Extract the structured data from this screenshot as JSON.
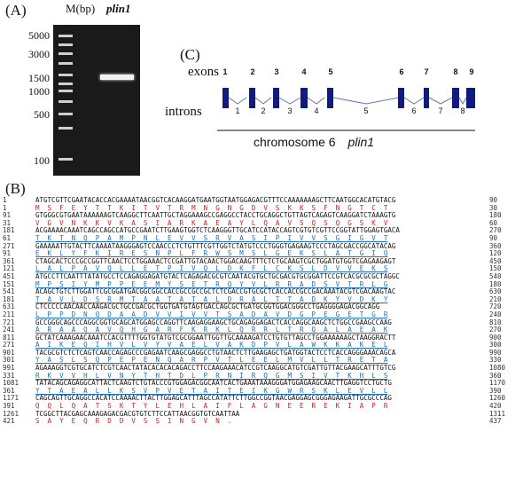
{
  "panels": {
    "a": "(A)",
    "b": "(B)",
    "c": "(C)"
  },
  "gel": {
    "marker_header": "M(bp)",
    "sample_header": "plin1",
    "ladder": [
      "5000",
      "3000",
      "1500",
      "1000",
      "500",
      "100"
    ]
  },
  "gene_diagram": {
    "exons_label": "exons",
    "introns_label": "introns",
    "exon_numbers": [
      "1",
      "2",
      "3",
      "4",
      "5",
      "6",
      "7",
      "8",
      "9"
    ],
    "intron_numbers": [
      "1",
      "2",
      "3",
      "4",
      "5",
      "6",
      "7",
      "8"
    ],
    "chromosome": "chromosome 6",
    "gene": "plin1"
  },
  "sequence": [
    {
      "n": "1",
      "s": "ATGTCGTTCGAATACACCACGAAAATAACGGTCACAAGGATGAATGGTAATGGAGACGTTTCCAAAAAAAGCTTCAATGGCACATGTACG",
      "r": "90",
      "t": "nt"
    },
    {
      "n": "1",
      "s": "M  S  F  E  Y  T  T  K  I  T  V  T  R  M  N  G  N  G  D  V  S  K  K  S  F  N  G  T  C  T",
      "r": "30",
      "t": "red"
    },
    {
      "n": "91",
      "s": "GTGGGCGTGAATAAAAAAGTCAAGGCTTCAATTGCTAGGAAAGCCGAGGCCTACCTGCAGGCTGTTAGTCAGAGTCAAGGATCTAAAGTG",
      "r": "180",
      "t": "nt"
    },
    {
      "n": "31",
      "s": "V  G  V  N  K  K  V  K  A  S  I  A  R  K  A  E  A  Y  L  Q  A  V  S  Q  S  Q  G  S  K  V",
      "r": "60",
      "t": "red"
    },
    {
      "n": "181",
      "s": "ACGAAAACAAATCAGCCAGCCATGCCGAATCTTGAAGTGGTCTCAAGGGTTGCATCCATACCAGTCGTGTCGTTCCGGTATTGGAGTGACA",
      "r": "270",
      "t": "nt"
    },
    {
      "n": "61",
      "s": "T  K  T  N  Q  P  A  M  P  N  L  E  V  V  S  R  V  A  S  I  P  I  V  V  S  G  I  G  V  T",
      "r": "90",
      "t": "mix"
    },
    {
      "n": "271",
      "s": "GAAAAATTGTACTTCAAAATAAGGGAGTCCAACCCTCTGTTTCGTTGGTCTATGTCCCTGGGTGAGAAGTCCCTAGCGACCGGCATACAG",
      "r": "360",
      "t": "nt"
    },
    {
      "n": "91",
      "s": "E  K  L  Y  F  K  I  R  E  S  N  P  L  F  R  W  S  M  S  L  G  E  K  S  L  A  T  G  I  Q",
      "r": "120",
      "t": "blue"
    },
    {
      "n": "361",
      "s": "CTAGCACTCCCGCCGGTTCAACTCCTGGAAACTCCGATTGTACAACTGGACAAGTTTCTCTGCAAGTCGCTGGATGTGGTCGAGAAGAGT",
      "r": "450",
      "t": "nt"
    },
    {
      "n": "121",
      "s": "L  A  L  P  A  V  Q  L  L  E  T  P  I  V  Q  L  D  K  F  L  C  K  S  L  D  V  V  E  K  S",
      "r": "150",
      "t": "blue"
    },
    {
      "n": "451",
      "s": "ATGCCTTCAATTTATATGCCTCCAGAGGAGATGTACTCAGAGACGCGTCAATACGTGCTGCGACGTGCGGATTCCGTCACGCGCGCTAGGC",
      "r": "540",
      "t": "nt"
    },
    {
      "n": "151",
      "s": "M  P  S  I  Y  M  P  P  E  E  M  Y  S  E  T  R  Q  Y  V  L  R  R  A  D  S  V  T  R  L  G",
      "r": "180",
      "t": "blue"
    },
    {
      "n": "541",
      "s": "ACAGCTGTCTTGGATTCGCGGATGACGGCGGCCACCGCCGCCGCTCTCGACCGTGCGCTCACCACCGCCGACAAATACGTCGACAAGTAC",
      "r": "630",
      "t": "nt"
    },
    {
      "n": "181",
      "s": "T  A  V  L  D  S  R  M  T  A  A  T  A  T  A  L  D  R  A  L  T  T  A  D  K  Y  V  D  K  Y",
      "r": "210",
      "t": "blue"
    },
    {
      "n": "631",
      "s": "CTCCCCCAACAACCAAGACGCTGCCGACGCTGGTGATGTAGTGACCAGCGCTGATGCGGTGGACGGGCCTGAGGGGAGACGGCAGG",
      "r": "720",
      "t": "nt"
    },
    {
      "n": "211",
      "s": "L  P  P  D  N  Q  D  A  A  D  V  V  I  V  V  T  S  A  D  A  V  D  G  P  E  G  E  T  G  R",
      "r": "240",
      "t": "blue"
    },
    {
      "n": "721",
      "s": "GCCGGGCAGCCCAGGCGGTGCAGCATGGAGCCAGGTTCAAGAGGAAGCTGCAGAGGAGACTCACCAGGCAAGCTCTGGCCGAAGCCAAG",
      "r": "810",
      "t": "nt"
    },
    {
      "n": "241",
      "s": "A  R  A  A  Q  A  V  Q  H  G  A  R  F  K  R  K  L  Q  R  R  L  T  R  Q  A  L  A  E  A  K",
      "r": "270",
      "t": "blue"
    },
    {
      "n": "811",
      "s": "GCTATCAAAGAACAAATCCACGTTTTGGTGTATGTCGCGGAATTGGTTGCAAAAGATCCTGTGTTAGCCTGGAAAAAAGCTAAGGRACTT",
      "r": "900",
      "t": "nt"
    },
    {
      "n": "271",
      "s": "A  I  K  E  Q  I  H  V  L  V  Y  V  A  E  L  V  A  K  D  P  V  L  A  W  K  K  A  K  E  L",
      "r": "300",
      "t": "blue"
    },
    {
      "n": "901",
      "s": "TACGCGTCTCTCAGTCAACCAGAGCCCGAGAATCAAGCGAGGCCTGTAACTCTTGAAGAGCTGATGGTACTCCTCACCAGGGAAACAGCA",
      "r": "990",
      "t": "nt"
    },
    {
      "n": "301",
      "s": "Y  A  S  L  S  Q  P  E  P  E  N  Q  A  R  P  V  T  L  E  E  L  M  V  L  L  T  R  E  T  A",
      "r": "330",
      "t": "blue"
    },
    {
      "n": "991",
      "s": "AGAAAGGTCGTGCATCTCGTCAACTATACACACACAGACCTTCCAAGAAACATCCGTCAAGGCATGTCGATTGTTACGAAGCATTTGTCG",
      "r": "1080",
      "t": "nt"
    },
    {
      "n": "331",
      "s": "R  K  V  V  H  L  V  N  Y  T  H  T  D  L  P  R  N  I  R  Q  G  M  S  I  V  T  K  H  L  S",
      "r": "360",
      "t": "blue"
    },
    {
      "n": "1081",
      "s": "TATACAGCAGAGGCATTACTCAAGTCTGTACCCGTGGAGACGGCAATCACTGAAATAAAGGGATGGAGAAGCAACTTGAGGTCCTGCTG",
      "r": "1170",
      "t": "nt"
    },
    {
      "n": "361",
      "s": "Y  T  A  E  A  L  L  K  S  V  P  V  E  T  A  I  T  E  I  K  G  W  R  S  K  L  E  V  L  L",
      "r": "390",
      "t": "mix2"
    },
    {
      "n": "1171",
      "s": "CAGCAGTTGCAGGCCACATCCAAAACTTACTTGGAGCATTTAGCCATATTCTTGGCCGGTAACGAGGAGCGGGAGAAGATTGCGCCCAG",
      "r": "1260",
      "t": "nt"
    },
    {
      "n": "391",
      "s": "Q  Q  L  Q  A  T  S  K  T  Y  L  E  H  L  A  I  F  L  A  G  N  E  E  R  E  K  I  A  P  R",
      "r": "420",
      "t": "red"
    },
    {
      "n": "1261",
      "s": "TCGGCTTACGAGCAAAGAGACGACGTGTCTTCCATTAACGGTGTCAATTAA",
      "r": "1311",
      "t": "nt"
    },
    {
      "n": "421",
      "s": "S  A  Y  E  Q  R  D  D  V  S  S  I  N  G  V  N  .",
      "r": "437",
      "t": "red"
    }
  ]
}
